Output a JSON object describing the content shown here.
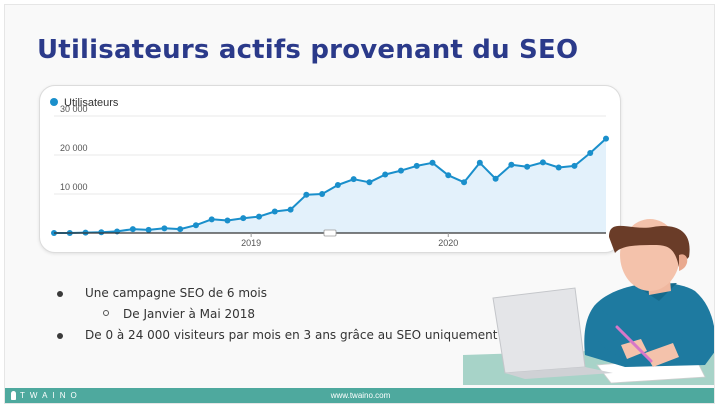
{
  "slide": {
    "title": "Utilisateurs actifs provenant du SEO",
    "bullets": [
      {
        "text": "Une campagne SEO de 6 mois",
        "level": 1
      },
      {
        "text": "De Janvier à Mai 2018",
        "level": 2
      },
      {
        "text": "De 0 à 24 000 visiteurs par mois en 3 ans grâce au SEO uniquement",
        "level": 1
      }
    ]
  },
  "footer": {
    "brand": "TWAINO",
    "url": "www.twaino.com"
  },
  "chart_data": {
    "type": "area",
    "legend": {
      "label": "Utilisateurs",
      "placement": "top-left"
    },
    "series": [
      {
        "name": "Utilisateurs",
        "color": "#1a8fcb"
      }
    ],
    "values": [
      0,
      0,
      100,
      200,
      400,
      1000,
      800,
      1200,
      1000,
      2000,
      3500,
      3200,
      3800,
      4200,
      5500,
      6000,
      9800,
      10000,
      12300,
      13800,
      13000,
      15000,
      16000,
      17200,
      18000,
      14800,
      13000,
      18000,
      13900,
      17500,
      17000,
      18100,
      16800,
      17200,
      20500,
      24200
    ],
    "x_tick_labels": [
      {
        "label": "2019",
        "index": 12.5
      },
      {
        "label": "2020",
        "index": 25
      }
    ],
    "y_ticks": [
      10000,
      20000,
      30000
    ],
    "y_tick_labels": [
      "10 000",
      "20 000",
      "30 000"
    ],
    "ylim": [
      0,
      30000
    ],
    "grid": "horizontal",
    "fill_color": "#e3f1fb"
  }
}
